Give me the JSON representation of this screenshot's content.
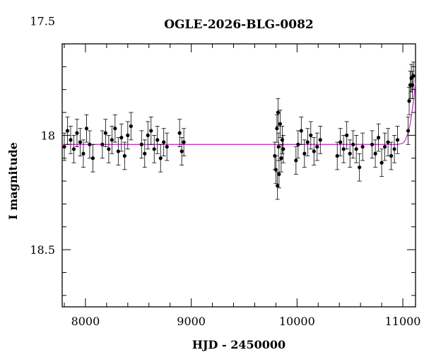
{
  "chart_data": {
    "type": "scatter",
    "title": "OGLE-2026-BLG-0082",
    "xlabel": "HJD - 2450000",
    "ylabel": "I magnitude",
    "xlim": [
      7780,
      11120
    ],
    "ylim": [
      18.75,
      17.6
    ],
    "y_inverted": true,
    "grid": false,
    "x_ticks": [
      {
        "value": 8000,
        "label": "8000"
      },
      {
        "value": 9000,
        "label": "9000"
      },
      {
        "value": 10000,
        "label": "10000"
      },
      {
        "value": 11000,
        "label": "11000"
      }
    ],
    "y_ticks": [
      {
        "value": 17.5,
        "label": "17.5"
      },
      {
        "value": 18.0,
        "label": "18"
      },
      {
        "value": 18.5,
        "label": "18.5"
      }
    ],
    "x_minor_step": 200,
    "y_minor_step": 0.1,
    "colors": {
      "data": "#000000",
      "model": "#cc33cc",
      "axes": "#000000"
    },
    "series": [
      {
        "kind": "points_with_errorbars",
        "x": [
          7800,
          7830,
          7860,
          7890,
          7920,
          7950,
          7980,
          8010,
          8040,
          8070,
          8160,
          8190,
          8220,
          8250,
          8280,
          8310,
          8340,
          8370,
          8400,
          8430,
          8530,
          8560,
          8590,
          8620,
          8650,
          8680,
          8710,
          8740,
          8770,
          8890,
          8910,
          8930,
          9790,
          9800,
          9810,
          9815,
          9820,
          9825,
          9830,
          9840,
          9850,
          9860,
          9870,
          9990,
          10010,
          10040,
          10070,
          10100,
          10130,
          10160,
          10190,
          10220,
          10380,
          10410,
          10440,
          10470,
          10500,
          10530,
          10560,
          10590,
          10620,
          10710,
          10740,
          10770,
          10800,
          10830,
          10860,
          10890,
          10920,
          10950,
          11050,
          11060,
          11070,
          11080,
          11090,
          11100
        ],
        "y": [
          18.05,
          17.98,
          18.02,
          18.06,
          17.99,
          18.03,
          18.08,
          17.97,
          18.04,
          18.1,
          18.04,
          17.99,
          18.06,
          18.02,
          17.97,
          18.07,
          18.01,
          18.09,
          18.0,
          17.96,
          18.04,
          18.08,
          18.0,
          17.98,
          18.06,
          18.02,
          18.1,
          18.03,
          18.05,
          17.99,
          18.07,
          18.03,
          18.09,
          18.15,
          17.97,
          18.22,
          17.9,
          18.05,
          18.17,
          17.95,
          18.1,
          18.02,
          18.06,
          18.11,
          18.04,
          17.98,
          18.08,
          18.03,
          18.0,
          18.07,
          18.05,
          18.02,
          18.09,
          18.03,
          18.06,
          18.0,
          18.08,
          18.04,
          18.06,
          18.14,
          18.05,
          18.04,
          18.08,
          18.01,
          18.12,
          18.05,
          18.03,
          18.09,
          18.06,
          18.02,
          17.98,
          17.85,
          17.78,
          17.75,
          17.78,
          17.74
        ],
        "yerr": 0.06
      },
      {
        "kind": "model_curve",
        "x": [
          7780,
          8500,
          9500,
          10500,
          10950,
          11000,
          11025,
          11050,
          11065,
          11080,
          11095,
          11108,
          11120
        ],
        "y": [
          18.04,
          18.04,
          18.04,
          18.04,
          18.04,
          18.035,
          18.02,
          17.99,
          17.96,
          17.92,
          17.87,
          17.82,
          17.77
        ]
      }
    ]
  }
}
